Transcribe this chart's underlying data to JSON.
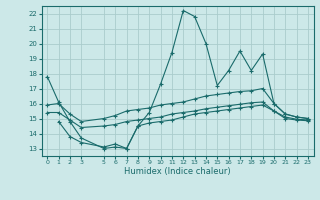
{
  "xlabel": "Humidex (Indice chaleur)",
  "bg_color": "#cce8e8",
  "grid_color": "#aacccc",
  "line_color": "#1a6b6b",
  "xlim": [
    -0.5,
    23.5
  ],
  "ylim": [
    12.5,
    22.5
  ],
  "yticks": [
    13,
    14,
    15,
    16,
    17,
    18,
    19,
    20,
    21,
    22
  ],
  "xticks": [
    0,
    1,
    2,
    3,
    5,
    6,
    7,
    8,
    9,
    10,
    11,
    12,
    13,
    14,
    15,
    16,
    17,
    18,
    19,
    20,
    21,
    22,
    23
  ],
  "line1_x": [
    0,
    1,
    2,
    3,
    5,
    6,
    7,
    8,
    9,
    10,
    11,
    12,
    13,
    14,
    15,
    16,
    17,
    18,
    19,
    20,
    21,
    22,
    23
  ],
  "line1_y": [
    17.8,
    16.1,
    14.8,
    13.7,
    13.0,
    13.1,
    13.0,
    14.5,
    15.4,
    17.3,
    19.4,
    22.2,
    21.8,
    20.0,
    17.2,
    18.2,
    19.5,
    18.2,
    19.3,
    16.0,
    15.3,
    15.1,
    15.0
  ],
  "line2_x": [
    0,
    1,
    2,
    3,
    5,
    6,
    7,
    8,
    9,
    10,
    11,
    12,
    13,
    14,
    15,
    16,
    17,
    18,
    19,
    20,
    21,
    22,
    23
  ],
  "line2_y": [
    15.9,
    16.0,
    15.3,
    14.8,
    15.0,
    15.2,
    15.5,
    15.6,
    15.7,
    15.9,
    16.0,
    16.1,
    16.3,
    16.5,
    16.6,
    16.7,
    16.8,
    16.85,
    17.0,
    16.0,
    15.3,
    15.1,
    15.0
  ],
  "line3_x": [
    0,
    1,
    2,
    3,
    5,
    6,
    7,
    8,
    9,
    10,
    11,
    12,
    13,
    14,
    15,
    16,
    17,
    18,
    19,
    20,
    21,
    22,
    23
  ],
  "line3_y": [
    15.4,
    15.4,
    14.9,
    14.4,
    14.5,
    14.6,
    14.8,
    14.9,
    15.0,
    15.1,
    15.3,
    15.4,
    15.5,
    15.65,
    15.75,
    15.85,
    15.95,
    16.05,
    16.1,
    15.5,
    15.1,
    14.95,
    14.9
  ],
  "line4_x": [
    1,
    2,
    3,
    5,
    6,
    7,
    8,
    9,
    10,
    11,
    12,
    13,
    14,
    15,
    16,
    17,
    18,
    19,
    20,
    21,
    22,
    23
  ],
  "line4_y": [
    14.8,
    13.8,
    13.4,
    13.1,
    13.3,
    13.0,
    14.5,
    14.7,
    14.8,
    14.9,
    15.1,
    15.3,
    15.4,
    15.5,
    15.6,
    15.7,
    15.8,
    15.9,
    15.5,
    15.0,
    14.9,
    14.85
  ]
}
